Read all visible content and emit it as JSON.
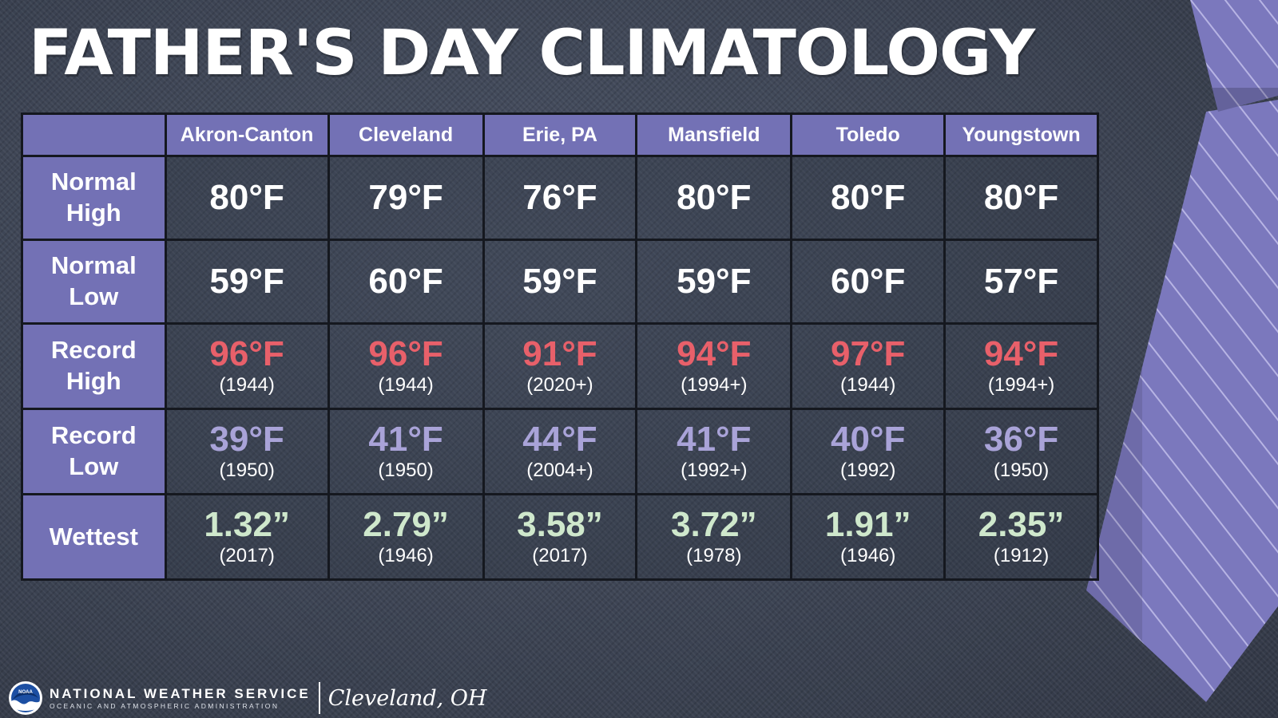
{
  "title": "FATHER'S DAY CLIMATOLOGY",
  "colors": {
    "header_bg": "#7371b5",
    "record_high": "#e8606a",
    "record_low": "#a9a3d8",
    "wettest": "#cfe8cc",
    "tie": "#7b78bd"
  },
  "table": {
    "columns": [
      "Akron-Canton",
      "Cleveland",
      "Erie, PA",
      "Mansfield",
      "Toledo",
      "Youngstown"
    ],
    "rows": [
      {
        "label": "Normal High",
        "style": "white",
        "values": [
          "80°F",
          "79°F",
          "76°F",
          "80°F",
          "80°F",
          "80°F"
        ],
        "years": []
      },
      {
        "label": "Normal Low",
        "style": "white",
        "values": [
          "59°F",
          "60°F",
          "59°F",
          "59°F",
          "60°F",
          "57°F"
        ],
        "years": []
      },
      {
        "label": "Record High",
        "style": "red",
        "values": [
          "96°F",
          "96°F",
          "91°F",
          "94°F",
          "97°F",
          "94°F"
        ],
        "years": [
          "(1944)",
          "(1944)",
          "(2020+)",
          "(1994+)",
          "(1944)",
          "(1994+)"
        ]
      },
      {
        "label": "Record Low",
        "style": "lav",
        "values": [
          "39°F",
          "41°F",
          "44°F",
          "41°F",
          "40°F",
          "36°F"
        ],
        "years": [
          "(1950)",
          "(1950)",
          "(2004+)",
          "(1992+)",
          "(1992)",
          "(1950)"
        ]
      },
      {
        "label": "Wettest",
        "style": "mint",
        "values": [
          "1.32”",
          "2.79”",
          "3.58”",
          "3.72”",
          "1.91”",
          "2.35”"
        ],
        "years": [
          "(2017)",
          "(1946)",
          "(2017)",
          "(1978)",
          "(1946)",
          "(1912)"
        ]
      }
    ]
  },
  "footer": {
    "logo_icon": "noaa-logo-icon",
    "logo_text": "NOAA",
    "agency": "NATIONAL WEATHER SERVICE",
    "subagency": "OCEANIC AND ATMOSPHERIC ADMINISTRATION",
    "office": "Cleveland, OH"
  },
  "decoration": {
    "icon": "necktie-icon"
  }
}
